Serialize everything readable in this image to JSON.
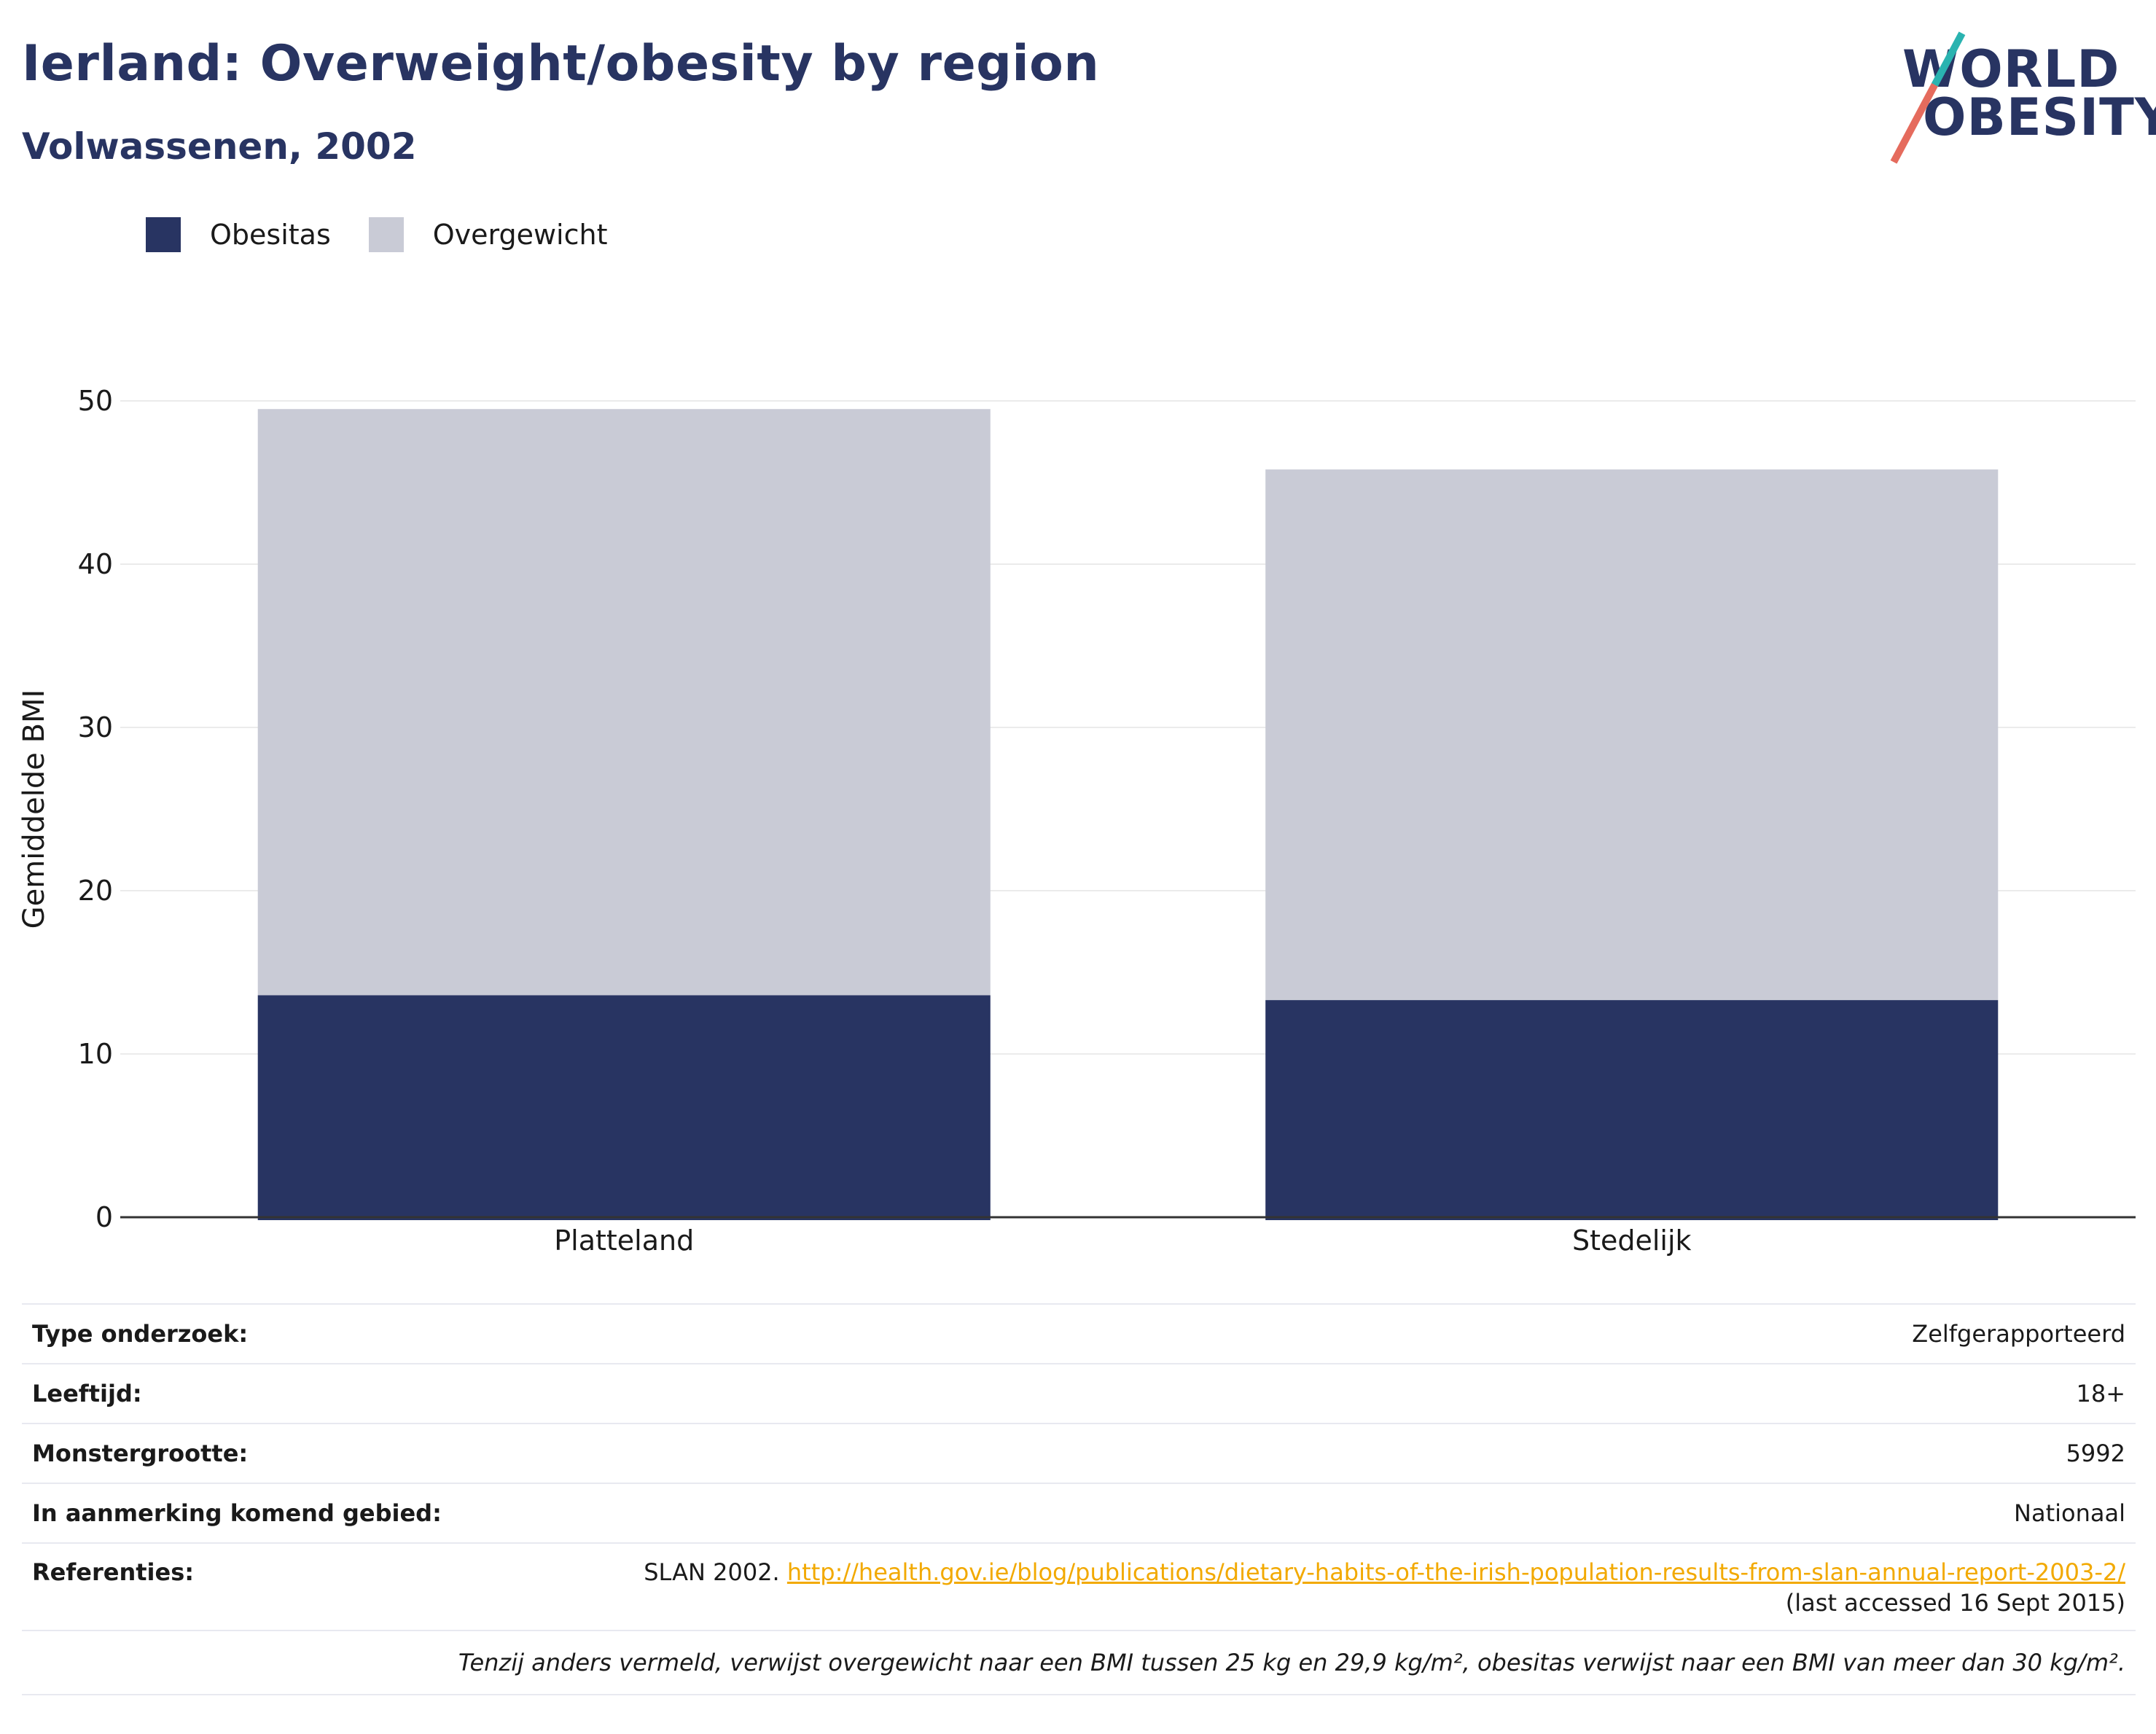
{
  "header": {
    "title": "Ierland: Overweight/obesity by region",
    "subtitle": "Volwassenen, 2002"
  },
  "logo": {
    "line1": "WORLD",
    "line2": "OBESITY"
  },
  "legend": [
    {
      "label": "Obesitas",
      "color": "#283462"
    },
    {
      "label": "Overgewicht",
      "color": "#c9cbd6"
    }
  ],
  "chart_data": {
    "type": "bar",
    "stacked": true,
    "categories": [
      "Platteland",
      "Stedelijk"
    ],
    "series": [
      {
        "name": "Obesitas",
        "color": "#283462",
        "values": [
          13.6,
          13.3
        ]
      },
      {
        "name": "Overgewicht",
        "color": "#c9cbd6",
        "values": [
          35.9,
          32.5
        ]
      }
    ],
    "ylabel": "Gemiddelde BMI",
    "ylim": [
      0,
      50
    ],
    "yticks": [
      0,
      10,
      20,
      30,
      40,
      50
    ],
    "grid": true,
    "legend_position": "top-left"
  },
  "info": {
    "rows": [
      {
        "key": "Type onderzoek:",
        "value": "Zelfgerapporteerd"
      },
      {
        "key": "Leeftijd:",
        "value": "18+"
      },
      {
        "key": "Monstergrootte:",
        "value": "5992"
      },
      {
        "key": "In aanmerking komend gebied:",
        "value": "Nationaal"
      }
    ],
    "references": {
      "key": "Referenties:",
      "prefix": "SLAN 2002.",
      "link": "http://health.gov.ie/blog/publications/dietary-habits-of-the-irish-population-results-from-slan-annual-report-2003-2/",
      "suffix": "(last accessed 16 Sept 2015)"
    },
    "note": "Tenzij anders vermeld, verwijst overgewicht naar een BMI tussen 25 kg en 29,9 kg/m², obesitas verwijst naar een BMI van meer dan 30 kg/m²."
  }
}
